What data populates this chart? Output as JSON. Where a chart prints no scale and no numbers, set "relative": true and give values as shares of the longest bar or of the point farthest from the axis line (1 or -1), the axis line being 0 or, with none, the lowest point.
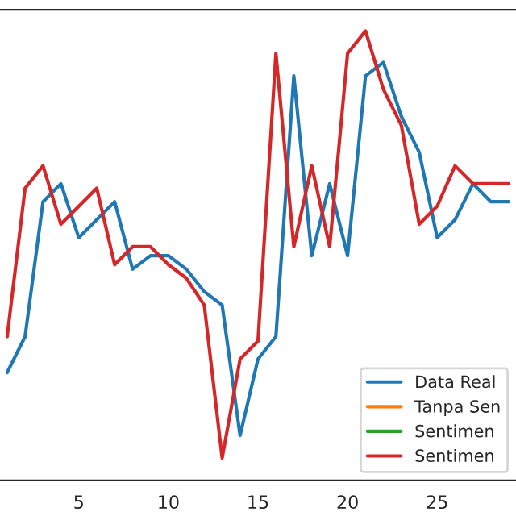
{
  "chart_data": {
    "type": "line",
    "relative": true,
    "x": [
      1,
      2,
      3,
      4,
      5,
      6,
      7,
      8,
      9,
      10,
      11,
      12,
      13,
      14,
      15,
      16,
      17,
      18,
      19,
      20,
      21,
      22,
      23,
      24,
      25,
      26,
      27,
      28,
      29
    ],
    "xlim": [
      0.6,
      29.4
    ],
    "xticks": [
      5,
      10,
      15,
      20,
      25
    ],
    "series": [
      {
        "name": "Data Real",
        "color": "#1f77b4",
        "values": [
          0.24,
          0.32,
          0.62,
          0.66,
          0.54,
          0.58,
          0.62,
          0.47,
          0.5,
          0.5,
          0.47,
          0.42,
          0.39,
          0.1,
          0.27,
          0.32,
          0.9,
          0.5,
          0.66,
          0.5,
          0.9,
          0.93,
          0.81,
          0.73,
          0.54,
          0.58,
          0.66,
          0.62,
          0.62
        ]
      },
      {
        "name": "Tanpa Sen",
        "color": "#ff7f0e",
        "values": [
          null,
          null,
          null,
          null,
          null,
          null,
          null,
          null,
          null,
          null,
          null,
          null,
          null,
          null,
          null,
          null,
          null,
          null,
          null,
          null,
          null,
          null,
          null,
          null,
          null,
          null,
          null,
          null,
          null
        ]
      },
      {
        "name": "Sentimen",
        "color": "#2ca02c",
        "values": [
          null,
          null,
          null,
          null,
          null,
          null,
          null,
          null,
          null,
          null,
          null,
          null,
          null,
          null,
          null,
          null,
          null,
          null,
          null,
          null,
          null,
          null,
          null,
          null,
          null,
          null,
          null,
          null,
          null
        ]
      },
      {
        "name": "Sentimen",
        "color": "#d62728",
        "values": [
          0.32,
          0.65,
          0.7,
          0.57,
          0.61,
          0.65,
          0.48,
          0.52,
          0.52,
          0.48,
          0.45,
          0.39,
          0.05,
          0.27,
          0.31,
          0.95,
          0.52,
          0.7,
          0.52,
          0.95,
          1,
          0.87,
          0.79,
          0.57,
          0.61,
          0.7,
          0.66,
          0.66,
          0.66
        ]
      }
    ],
    "legend": "bottom right",
    "grid": false
  }
}
